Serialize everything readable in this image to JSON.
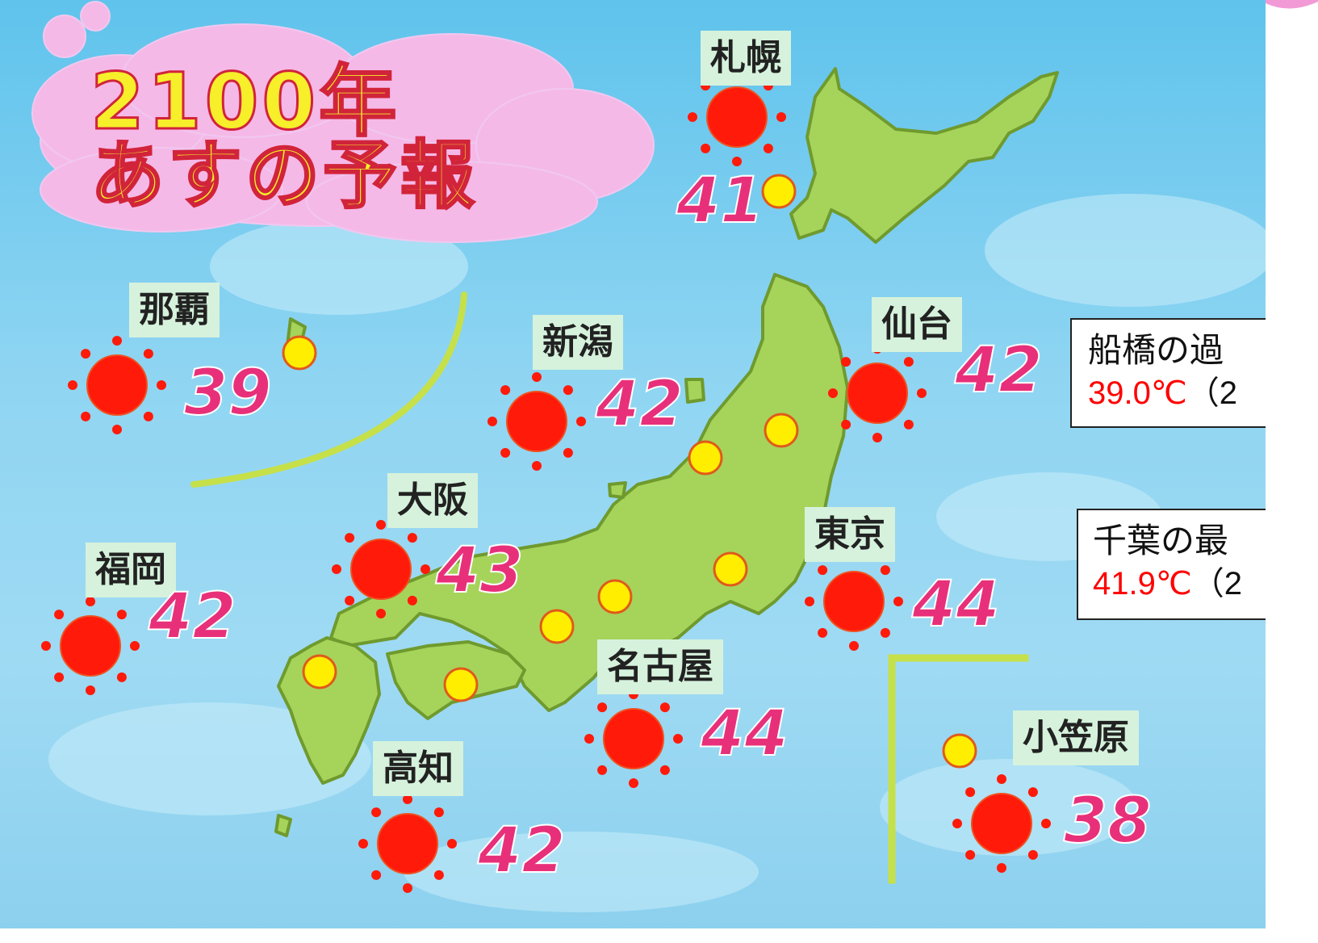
{
  "title": {
    "line1": "2100年",
    "line2": "あすの予報"
  },
  "cities": [
    {
      "id": "sapporo",
      "name": "札幌",
      "temp": "41"
    },
    {
      "id": "sendai",
      "name": "仙台",
      "temp": "42"
    },
    {
      "id": "niigata",
      "name": "新潟",
      "temp": "42"
    },
    {
      "id": "naha",
      "name": "那覇",
      "temp": "39"
    },
    {
      "id": "osaka",
      "name": "大阪",
      "temp": "43"
    },
    {
      "id": "tokyo",
      "name": "東京",
      "temp": "44"
    },
    {
      "id": "fukuoka",
      "name": "福岡",
      "temp": "42"
    },
    {
      "id": "nagoya",
      "name": "名古屋",
      "temp": "44"
    },
    {
      "id": "kochi",
      "name": "高知",
      "temp": "42"
    },
    {
      "id": "ogasawara",
      "name": "小笠原",
      "temp": "38"
    }
  ],
  "records": [
    {
      "line1": "船橋の過",
      "value": "39.0℃",
      "suffix": "（2"
    },
    {
      "line1": "千葉の最",
      "value": "41.9℃",
      "suffix": "（2"
    }
  ],
  "colors": {
    "sea": "#8fd5f2",
    "land": "#a6d45a",
    "sun": "#ff1a0a",
    "city_marker": "#ffee00",
    "temp_text": "#e8307a",
    "title_cloud": "#f5b9e8",
    "title_fill": "#f6ef2a",
    "record_value": "#ff0000"
  }
}
